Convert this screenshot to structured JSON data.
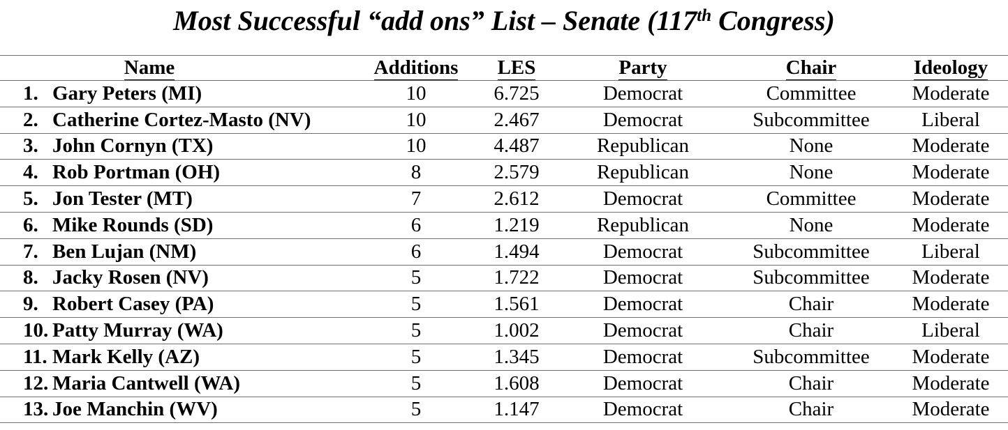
{
  "title": {
    "prefix": "Most Successful “add ons” List – Senate (117",
    "superscript": "th",
    "suffix": " Congress)"
  },
  "table": {
    "headers": [
      "Name",
      "Additions",
      "LES",
      "Party",
      "Chair",
      "Ideology"
    ],
    "rows": [
      {
        "rank": "1.",
        "name": "Gary Peters (MI)",
        "additions": "10",
        "les": "6.725",
        "party": "Democrat",
        "chair": "Committee",
        "ideology": "Moderate"
      },
      {
        "rank": "2.",
        "name": "Catherine Cortez-Masto (NV)",
        "additions": "10",
        "les": "2.467",
        "party": "Democrat",
        "chair": "Subcommittee",
        "ideology": "Liberal"
      },
      {
        "rank": "3.",
        "name": "John Cornyn (TX)",
        "additions": "10",
        "les": "4.487",
        "party": "Republican",
        "chair": "None",
        "ideology": "Moderate"
      },
      {
        "rank": "4.",
        "name": "Rob Portman (OH)",
        "additions": "8",
        "les": "2.579",
        "party": "Republican",
        "chair": "None",
        "ideology": "Moderate"
      },
      {
        "rank": "5.",
        "name": "Jon Tester (MT)",
        "additions": "7",
        "les": "2.612",
        "party": "Democrat",
        "chair": "Committee",
        "ideology": "Moderate"
      },
      {
        "rank": "6.",
        "name": "Mike Rounds (SD)",
        "additions": "6",
        "les": "1.219",
        "party": "Republican",
        "chair": "None",
        "ideology": "Moderate"
      },
      {
        "rank": "7.",
        "name": "Ben Lujan (NM)",
        "additions": "6",
        "les": "1.494",
        "party": "Democrat",
        "chair": "Subcommittee",
        "ideology": "Liberal"
      },
      {
        "rank": "8.",
        "name": "Jacky Rosen (NV)",
        "additions": "5",
        "les": "1.722",
        "party": "Democrat",
        "chair": "Subcommittee",
        "ideology": "Moderate"
      },
      {
        "rank": "9.",
        "name": "Robert Casey (PA)",
        "additions": "5",
        "les": "1.561",
        "party": "Democrat",
        "chair": "Chair",
        "ideology": "Moderate"
      },
      {
        "rank": "10.",
        "name": "Patty Murray (WA)",
        "additions": "5",
        "les": "1.002",
        "party": "Democrat",
        "chair": "Chair",
        "ideology": "Liberal"
      },
      {
        "rank": "11.",
        "name": "Mark Kelly (AZ)",
        "additions": "5",
        "les": "1.345",
        "party": "Democrat",
        "chair": "Subcommittee",
        "ideology": "Moderate"
      },
      {
        "rank": "12.",
        "name": "Maria Cantwell (WA)",
        "additions": "5",
        "les": "1.608",
        "party": "Democrat",
        "chair": "Chair",
        "ideology": "Moderate"
      },
      {
        "rank": "13.",
        "name": "Joe Manchin (WV)",
        "additions": "5",
        "les": "1.147",
        "party": "Democrat",
        "chair": "Chair",
        "ideology": "Moderate"
      }
    ]
  }
}
